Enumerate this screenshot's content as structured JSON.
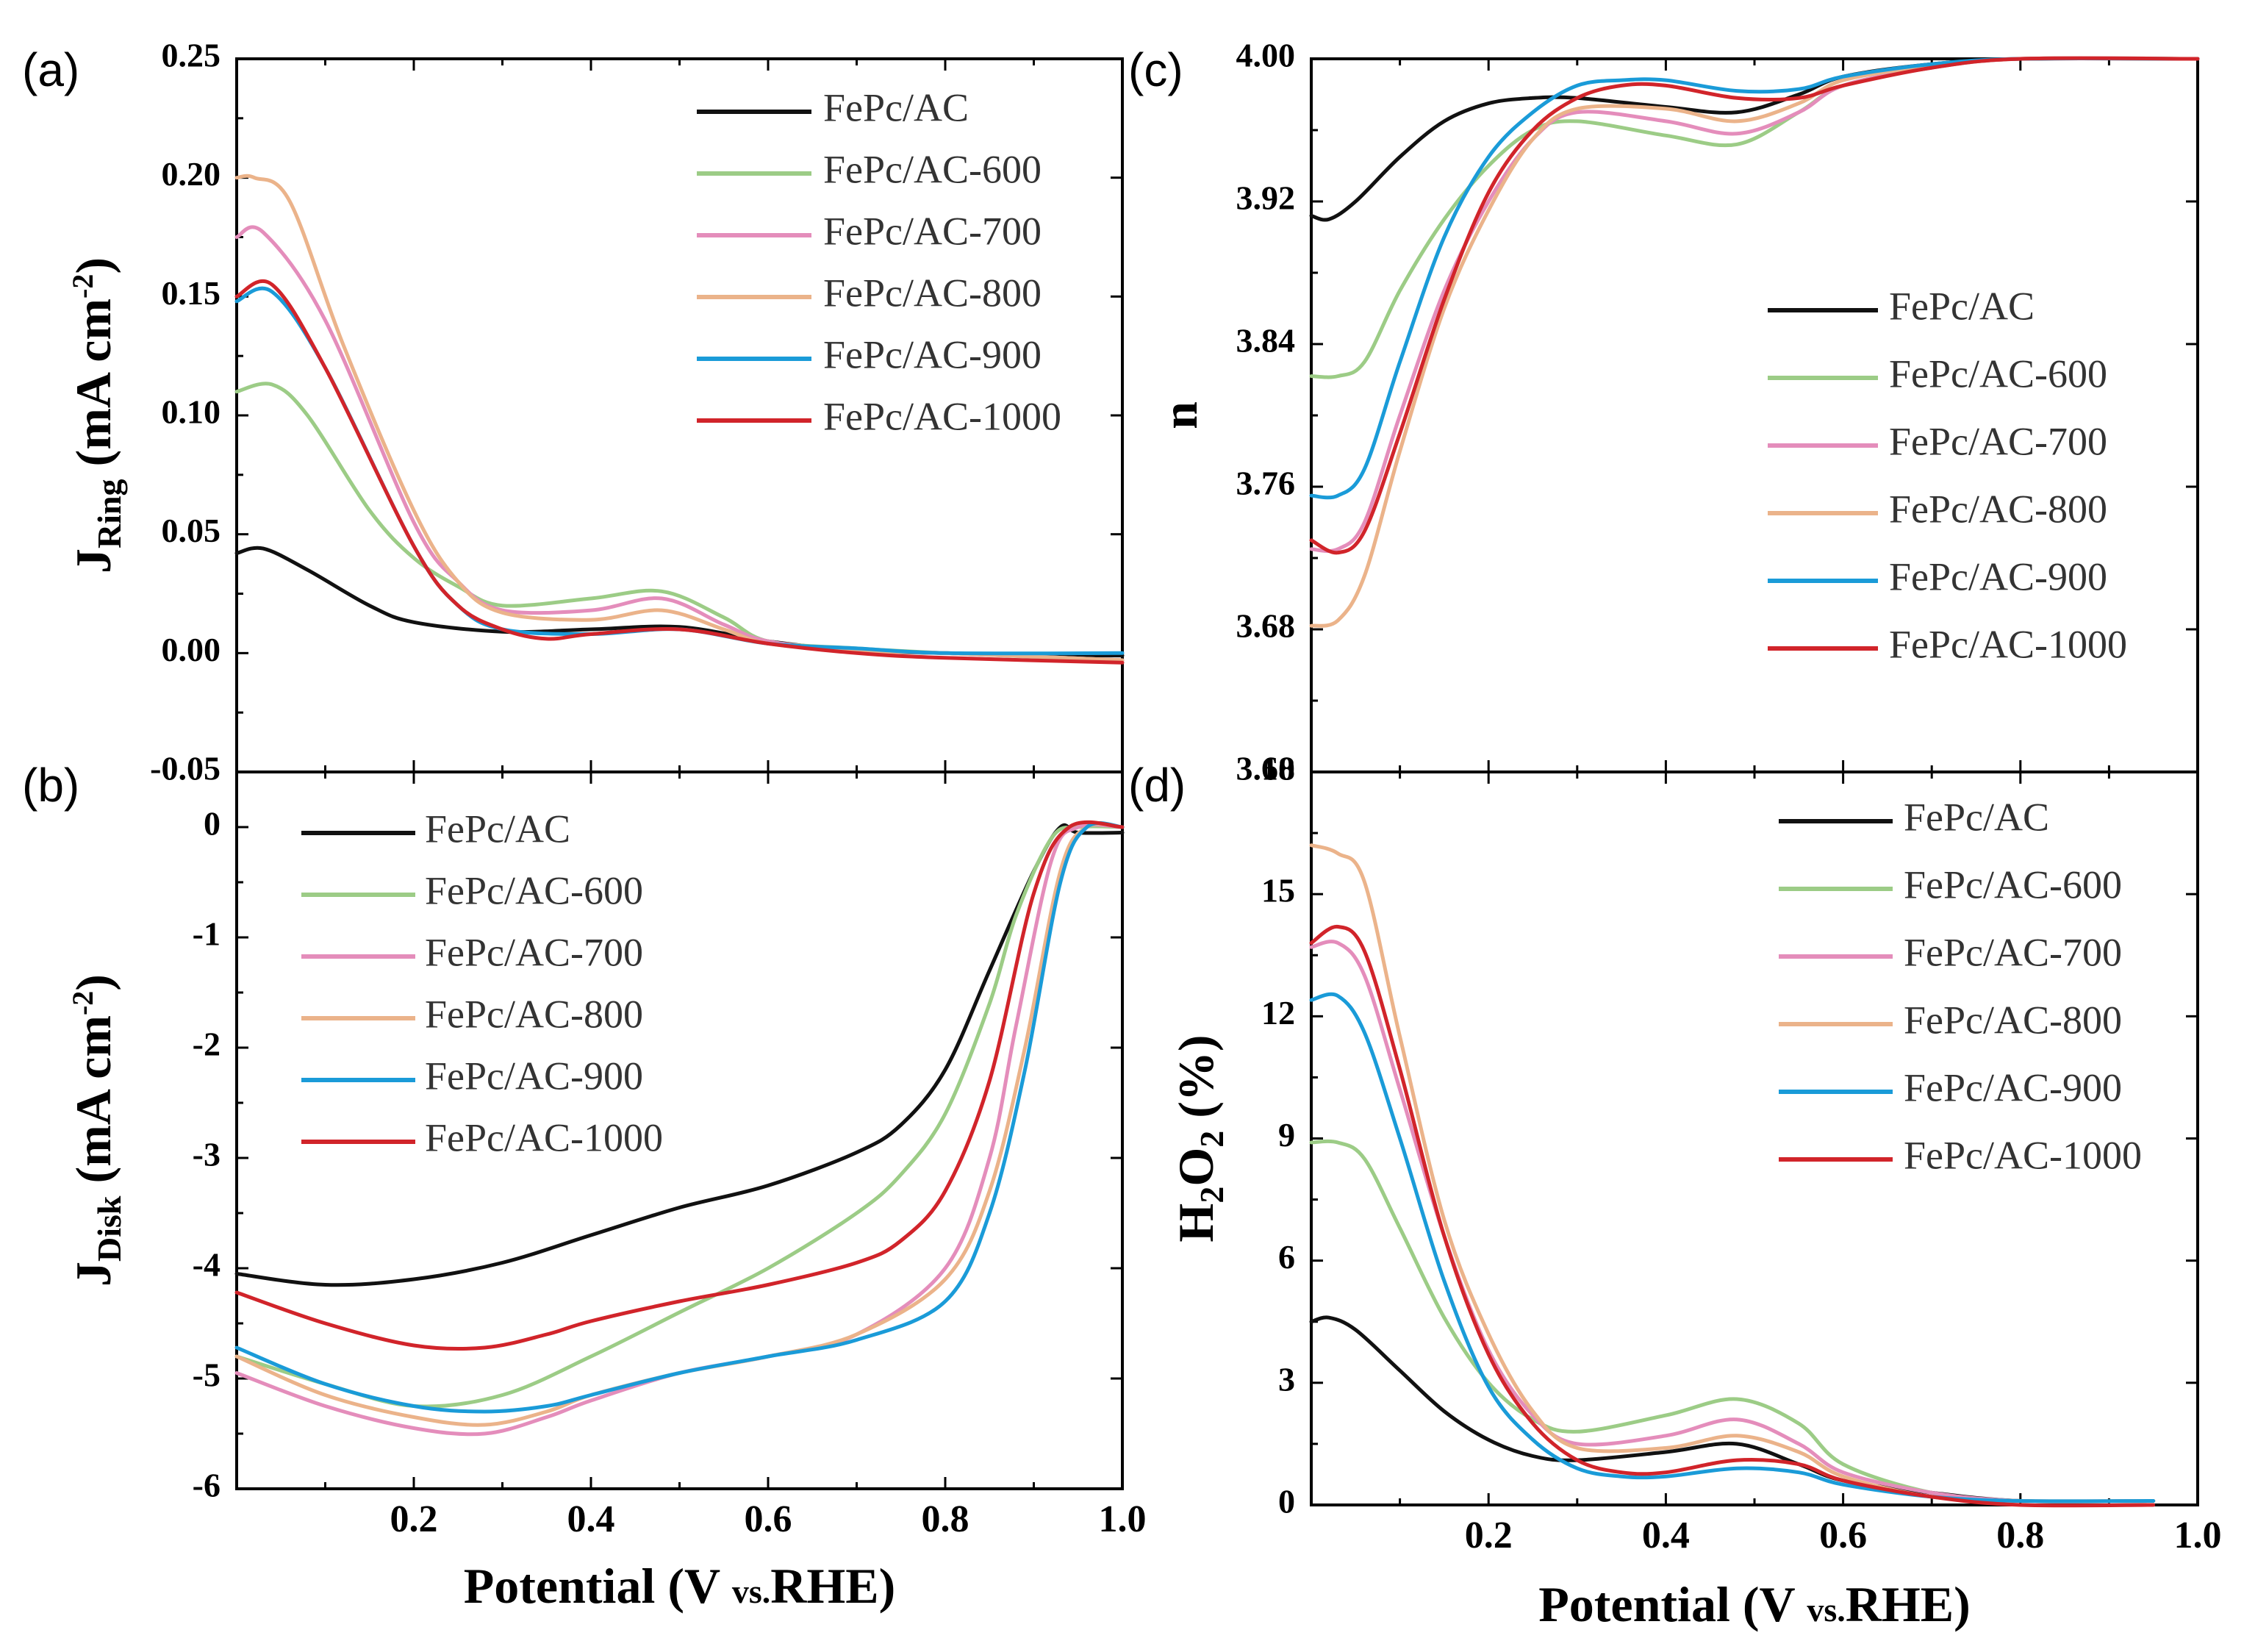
{
  "colors": {
    "FePc/AC": "#111111",
    "FePc/AC-600": "#9ccc86",
    "FePc/AC-700": "#e48dbb",
    "FePc/AC-800": "#ebb38a",
    "FePc/AC-900": "#1a9bd8",
    "FePc/AC-1000": "#d1242a"
  },
  "chart_data": [
    {
      "panel": "(a)",
      "type": "line",
      "xlabel_main": "",
      "xlabel_sub": "",
      "ylabel_main": "J",
      "ylabel_sub": "Ring",
      "ylabel_unit": " (mA cm",
      "ylabel_sup": "-2",
      "ylabel_close": ")",
      "xlim": [
        0.0,
        1.0
      ],
      "ylim": [
        -0.05,
        0.25
      ],
      "yticks": [
        -0.05,
        0.0,
        0.05,
        0.1,
        0.15,
        0.2,
        0.25
      ],
      "ytick_labels": [
        "-0.05",
        "0.00",
        "0.05",
        "0.10",
        "0.15",
        "0.20",
        "0.25"
      ],
      "legend": [
        "FePc/AC",
        "FePc/AC-600",
        "FePc/AC-700",
        "FePc/AC-800",
        "FePc/AC-900",
        "FePc/AC-1000"
      ],
      "series": [
        {
          "name": "FePc/AC",
          "x": [
            0.0,
            0.03,
            0.08,
            0.15,
            0.2,
            0.3,
            0.4,
            0.5,
            0.6,
            0.7,
            0.8,
            0.9,
            1.0
          ],
          "y": [
            0.042,
            0.044,
            0.035,
            0.02,
            0.013,
            0.009,
            0.01,
            0.011,
            0.005,
            0.001,
            0.0,
            -0.001,
            -0.001
          ]
        },
        {
          "name": "FePc/AC-600",
          "x": [
            0.0,
            0.04,
            0.08,
            0.15,
            0.2,
            0.25,
            0.3,
            0.4,
            0.48,
            0.55,
            0.6,
            0.7,
            0.8,
            1.0
          ],
          "y": [
            0.11,
            0.113,
            0.1,
            0.06,
            0.04,
            0.028,
            0.02,
            0.023,
            0.026,
            0.015,
            0.005,
            0.002,
            0.0,
            -0.003
          ]
        },
        {
          "name": "FePc/AC-700",
          "x": [
            0.0,
            0.03,
            0.1,
            0.2,
            0.25,
            0.3,
            0.4,
            0.48,
            0.55,
            0.6,
            0.7,
            0.8,
            1.0
          ],
          "y": [
            0.175,
            0.177,
            0.14,
            0.055,
            0.03,
            0.018,
            0.018,
            0.023,
            0.012,
            0.005,
            0.001,
            0.0,
            -0.003
          ]
        },
        {
          "name": "FePc/AC-800",
          "x": [
            0.0,
            0.02,
            0.06,
            0.12,
            0.2,
            0.25,
            0.3,
            0.4,
            0.48,
            0.55,
            0.6,
            0.7,
            0.8,
            1.0
          ],
          "y": [
            0.2,
            0.2,
            0.19,
            0.13,
            0.06,
            0.03,
            0.017,
            0.014,
            0.018,
            0.01,
            0.004,
            0.001,
            0.0,
            -0.003
          ]
        },
        {
          "name": "FePc/AC-900",
          "x": [
            0.0,
            0.04,
            0.1,
            0.2,
            0.25,
            0.3,
            0.4,
            0.5,
            0.6,
            0.7,
            0.8,
            1.0
          ],
          "y": [
            0.148,
            0.152,
            0.12,
            0.045,
            0.02,
            0.01,
            0.008,
            0.01,
            0.004,
            0.002,
            0.0,
            0.0
          ]
        },
        {
          "name": "FePc/AC-1000",
          "x": [
            0.0,
            0.04,
            0.1,
            0.2,
            0.25,
            0.3,
            0.35,
            0.4,
            0.5,
            0.6,
            0.7,
            0.8,
            1.0
          ],
          "y": [
            0.15,
            0.155,
            0.12,
            0.045,
            0.02,
            0.01,
            0.006,
            0.008,
            0.01,
            0.004,
            0.0,
            -0.002,
            -0.004
          ]
        }
      ]
    },
    {
      "panel": "(b)",
      "type": "line",
      "xlabel_main": "Potential (V ",
      "xlabel_sub": "vs.",
      "xlabel_end": "RHE)",
      "ylabel_main": "J",
      "ylabel_sub": "Disk",
      "ylabel_unit": " (mA cm",
      "ylabel_sup": "-2",
      "ylabel_close": ")",
      "xlim": [
        0.0,
        1.0
      ],
      "ylim": [
        -6.0,
        0.5
      ],
      "yticks": [
        -6,
        -5,
        -4,
        -3,
        -2,
        -1,
        0
      ],
      "ytick_labels": [
        "-6",
        "-5",
        "-4",
        "-3",
        "-2",
        "-1",
        "0"
      ],
      "xticks": [
        0.2,
        0.4,
        0.6,
        0.8,
        1.0
      ],
      "xtick_labels": [
        "0.2",
        "0.4",
        "0.6",
        "0.8",
        "1.0"
      ],
      "legend": [
        "FePc/AC",
        "FePc/AC-600",
        "FePc/AC-700",
        "FePc/AC-800",
        "FePc/AC-900",
        "FePc/AC-1000"
      ],
      "series": [
        {
          "name": "FePc/AC",
          "x": [
            0.0,
            0.1,
            0.2,
            0.3,
            0.4,
            0.5,
            0.6,
            0.7,
            0.75,
            0.8,
            0.85,
            0.9,
            0.93,
            0.95,
            1.0
          ],
          "y": [
            -4.05,
            -4.15,
            -4.1,
            -3.95,
            -3.7,
            -3.45,
            -3.25,
            -2.95,
            -2.7,
            -2.2,
            -1.3,
            -0.4,
            0.0,
            -0.05,
            -0.05
          ]
        },
        {
          "name": "FePc/AC-600",
          "x": [
            0.0,
            0.1,
            0.2,
            0.3,
            0.4,
            0.5,
            0.6,
            0.7,
            0.75,
            0.8,
            0.85,
            0.88,
            0.92,
            0.95,
            1.0
          ],
          "y": [
            -4.8,
            -5.05,
            -5.25,
            -5.15,
            -4.8,
            -4.4,
            -4.0,
            -3.5,
            -3.15,
            -2.6,
            -1.6,
            -0.8,
            -0.1,
            0.0,
            0.0
          ]
        },
        {
          "name": "FePc/AC-700",
          "x": [
            0.0,
            0.1,
            0.2,
            0.28,
            0.35,
            0.4,
            0.5,
            0.6,
            0.7,
            0.8,
            0.85,
            0.88,
            0.92,
            0.95,
            1.0
          ],
          "y": [
            -4.95,
            -5.25,
            -5.45,
            -5.5,
            -5.35,
            -5.2,
            -4.95,
            -4.8,
            -4.6,
            -4.0,
            -3.0,
            -1.8,
            -0.3,
            0.0,
            0.0
          ]
        },
        {
          "name": "FePc/AC-800",
          "x": [
            0.0,
            0.1,
            0.2,
            0.28,
            0.35,
            0.4,
            0.5,
            0.6,
            0.7,
            0.8,
            0.85,
            0.89,
            0.93,
            0.96,
            1.0
          ],
          "y": [
            -4.8,
            -5.15,
            -5.35,
            -5.42,
            -5.3,
            -5.15,
            -4.95,
            -4.8,
            -4.6,
            -4.1,
            -3.3,
            -2.0,
            -0.4,
            0.0,
            0.0
          ]
        },
        {
          "name": "FePc/AC-900",
          "x": [
            0.0,
            0.1,
            0.2,
            0.28,
            0.35,
            0.4,
            0.5,
            0.6,
            0.7,
            0.8,
            0.85,
            0.89,
            0.93,
            0.96,
            1.0
          ],
          "y": [
            -4.72,
            -5.05,
            -5.25,
            -5.3,
            -5.25,
            -5.15,
            -4.95,
            -4.8,
            -4.65,
            -4.3,
            -3.5,
            -2.2,
            -0.5,
            0.0,
            0.0
          ]
        },
        {
          "name": "FePc/AC-1000",
          "x": [
            0.0,
            0.1,
            0.2,
            0.28,
            0.35,
            0.4,
            0.5,
            0.6,
            0.7,
            0.75,
            0.8,
            0.85,
            0.9,
            0.94,
            1.0
          ],
          "y": [
            -4.22,
            -4.5,
            -4.7,
            -4.72,
            -4.6,
            -4.48,
            -4.3,
            -4.15,
            -3.95,
            -3.75,
            -3.3,
            -2.3,
            -0.6,
            0.0,
            0.0
          ]
        }
      ]
    },
    {
      "panel": "(c)",
      "type": "line",
      "xlabel_main": "",
      "xlabel_sub": "",
      "ylabel_main": "n",
      "ylabel_sub": "",
      "ylabel_unit": "",
      "ylabel_sup": "",
      "ylabel_close": "",
      "xlim": [
        0.0,
        1.0
      ],
      "ylim": [
        3.6,
        4.0
      ],
      "yticks": [
        3.6,
        3.68,
        3.76,
        3.84,
        3.92,
        4.0
      ],
      "ytick_labels": [
        "3.60",
        "3.68",
        "3.76",
        "3.84",
        "3.92",
        "4.00"
      ],
      "legend": [
        "FePc/AC",
        "FePc/AC-600",
        "FePc/AC-700",
        "FePc/AC-800",
        "FePc/AC-900",
        "FePc/AC-1000"
      ],
      "series": [
        {
          "name": "FePc/AC",
          "x": [
            0.0,
            0.02,
            0.05,
            0.1,
            0.15,
            0.2,
            0.25,
            0.3,
            0.4,
            0.48,
            0.55,
            0.6,
            0.7,
            0.8,
            1.0
          ],
          "y": [
            3.912,
            3.91,
            3.92,
            3.945,
            3.965,
            3.975,
            3.978,
            3.978,
            3.973,
            3.97,
            3.98,
            3.99,
            3.997,
            4.0,
            4.0
          ]
        },
        {
          "name": "FePc/AC-600",
          "x": [
            0.0,
            0.03,
            0.06,
            0.1,
            0.15,
            0.2,
            0.25,
            0.3,
            0.4,
            0.48,
            0.55,
            0.6,
            0.7,
            0.8,
            1.0
          ],
          "y": [
            3.822,
            3.822,
            3.83,
            3.87,
            3.91,
            3.94,
            3.96,
            3.965,
            3.957,
            3.952,
            3.97,
            3.985,
            3.995,
            4.0,
            4.0
          ]
        },
        {
          "name": "FePc/AC-700",
          "x": [
            0.0,
            0.03,
            0.06,
            0.1,
            0.15,
            0.2,
            0.25,
            0.3,
            0.4,
            0.48,
            0.55,
            0.6,
            0.7,
            0.8,
            1.0
          ],
          "y": [
            3.725,
            3.725,
            3.74,
            3.8,
            3.87,
            3.92,
            3.955,
            3.97,
            3.965,
            3.958,
            3.97,
            3.985,
            3.995,
            4.0,
            4.0
          ]
        },
        {
          "name": "FePc/AC-800",
          "x": [
            0.0,
            0.03,
            0.06,
            0.1,
            0.15,
            0.2,
            0.25,
            0.3,
            0.4,
            0.48,
            0.55,
            0.6,
            0.7,
            0.8,
            1.0
          ],
          "y": [
            3.682,
            3.685,
            3.71,
            3.78,
            3.86,
            3.915,
            3.955,
            3.972,
            3.972,
            3.965,
            3.975,
            3.988,
            3.996,
            4.0,
            4.0
          ]
        },
        {
          "name": "FePc/AC-900",
          "x": [
            0.0,
            0.03,
            0.06,
            0.1,
            0.15,
            0.2,
            0.25,
            0.3,
            0.35,
            0.4,
            0.48,
            0.55,
            0.6,
            0.7,
            0.8,
            1.0
          ],
          "y": [
            3.755,
            3.755,
            3.77,
            3.83,
            3.9,
            3.945,
            3.97,
            3.985,
            3.988,
            3.988,
            3.982,
            3.983,
            3.99,
            3.997,
            4.0,
            4.0
          ]
        },
        {
          "name": "FePc/AC-1000",
          "x": [
            0.0,
            0.03,
            0.06,
            0.1,
            0.15,
            0.2,
            0.25,
            0.3,
            0.35,
            0.4,
            0.48,
            0.55,
            0.6,
            0.7,
            0.8,
            1.0
          ],
          "y": [
            3.73,
            3.723,
            3.735,
            3.79,
            3.865,
            3.925,
            3.96,
            3.978,
            3.985,
            3.985,
            3.978,
            3.978,
            3.985,
            3.995,
            4.0,
            4.0
          ]
        }
      ]
    },
    {
      "panel": "(d)",
      "type": "line",
      "xlabel_main": "Potential (V ",
      "xlabel_sub": "vs.",
      "xlabel_end": "RHE)",
      "ylabel_main": "H",
      "ylabel_sub": "2",
      "ylabel_mid": "O",
      "ylabel_sub2": "2",
      "ylabel_unit": " (%)",
      "ylabel_sup": "",
      "ylabel_close": "",
      "xlim": [
        0.0,
        1.0
      ],
      "ylim": [
        0,
        18
      ],
      "yticks": [
        0,
        3,
        6,
        9,
        12,
        15,
        18
      ],
      "ytick_labels": [
        "0",
        "3",
        "6",
        "9",
        "12",
        "15",
        "18"
      ],
      "xticks": [
        0.2,
        0.4,
        0.6,
        0.8,
        1.0
      ],
      "xtick_labels": [
        "0.2",
        "0.4",
        "0.6",
        "0.8",
        "1.0"
      ],
      "legend": [
        "FePc/AC",
        "FePc/AC-600",
        "FePc/AC-700",
        "FePc/AC-800",
        "FePc/AC-900",
        "FePc/AC-1000"
      ],
      "series": [
        {
          "name": "FePc/AC",
          "x": [
            0.0,
            0.02,
            0.05,
            0.1,
            0.15,
            0.2,
            0.25,
            0.3,
            0.4,
            0.48,
            0.55,
            0.6,
            0.7,
            0.8,
            0.95
          ],
          "y": [
            4.5,
            4.6,
            4.3,
            3.3,
            2.3,
            1.6,
            1.2,
            1.1,
            1.3,
            1.5,
            1.0,
            0.6,
            0.3,
            0.1,
            0.1
          ]
        },
        {
          "name": "FePc/AC-600",
          "x": [
            0.0,
            0.03,
            0.06,
            0.1,
            0.15,
            0.2,
            0.25,
            0.3,
            0.4,
            0.48,
            0.55,
            0.6,
            0.7,
            0.8,
            0.95
          ],
          "y": [
            8.9,
            8.9,
            8.5,
            6.8,
            4.6,
            3.0,
            2.1,
            1.8,
            2.2,
            2.6,
            2.0,
            1.0,
            0.3,
            0.1,
            0.1
          ]
        },
        {
          "name": "FePc/AC-700",
          "x": [
            0.0,
            0.03,
            0.06,
            0.1,
            0.15,
            0.2,
            0.25,
            0.3,
            0.4,
            0.48,
            0.55,
            0.6,
            0.7,
            0.8,
            0.95
          ],
          "y": [
            13.7,
            13.8,
            13.0,
            10.2,
            6.6,
            3.8,
            2.2,
            1.5,
            1.7,
            2.1,
            1.5,
            0.8,
            0.3,
            0.1,
            0.1
          ]
        },
        {
          "name": "FePc/AC-800",
          "x": [
            0.0,
            0.03,
            0.06,
            0.1,
            0.15,
            0.2,
            0.25,
            0.3,
            0.4,
            0.48,
            0.55,
            0.6,
            0.7,
            0.8,
            0.95
          ],
          "y": [
            16.2,
            16.0,
            15.3,
            11.5,
            7.0,
            4.2,
            2.3,
            1.4,
            1.4,
            1.7,
            1.3,
            0.7,
            0.2,
            0.1,
            0.1
          ]
        },
        {
          "name": "FePc/AC-900",
          "x": [
            0.0,
            0.03,
            0.06,
            0.1,
            0.15,
            0.2,
            0.25,
            0.3,
            0.35,
            0.4,
            0.48,
            0.55,
            0.6,
            0.7,
            0.8,
            0.95
          ],
          "y": [
            12.4,
            12.5,
            11.6,
            9.0,
            5.5,
            2.9,
            1.6,
            0.9,
            0.7,
            0.7,
            0.9,
            0.8,
            0.5,
            0.2,
            0.1,
            0.1
          ]
        },
        {
          "name": "FePc/AC-1000",
          "x": [
            0.0,
            0.03,
            0.06,
            0.1,
            0.15,
            0.2,
            0.25,
            0.3,
            0.35,
            0.4,
            0.48,
            0.55,
            0.6,
            0.7,
            0.8,
            0.95
          ],
          "y": [
            13.8,
            14.2,
            13.6,
            10.7,
            6.6,
            3.7,
            2.0,
            1.1,
            0.8,
            0.8,
            1.1,
            1.0,
            0.6,
            0.2,
            0.0,
            0.0
          ]
        }
      ]
    }
  ]
}
